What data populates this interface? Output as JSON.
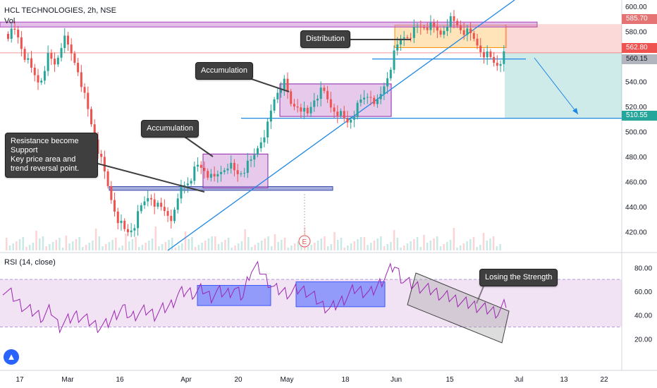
{
  "header": {
    "title": "HCL TECHNOLOGIES, 2h, NSE",
    "volume_label": "Vol"
  },
  "rsi_panel": {
    "title": "RSI (14, close)",
    "upper_band": 70,
    "lower_band": 30,
    "ticks": [
      "80.00",
      "60.00",
      "40.00",
      "20.00"
    ]
  },
  "price_axis": {
    "ticks": [
      "600.00",
      "580.00",
      "560.00",
      "540.00",
      "520.00",
      "500.00",
      "480.00",
      "460.00",
      "440.00",
      "420.00"
    ]
  },
  "price_tags": [
    {
      "value": "585.70",
      "color": "#e57373"
    },
    {
      "value": "562.80",
      "color": "#ef5350"
    },
    {
      "value": "560.15",
      "color": "#b2b5be"
    },
    {
      "value": "510.55",
      "color": "#26a69a"
    }
  ],
  "time_axis": {
    "labels": [
      "17",
      "Mar",
      "16",
      "Apr",
      "20",
      "May",
      "18",
      "Jun",
      "15",
      "Jul",
      "13",
      "22"
    ]
  },
  "annotations": {
    "resistance_support": "Resistance become Support\nKey price area and\ntrend reversal point.",
    "accumulation_1": "Accumulation",
    "accumulation_2": "Accumulation",
    "distribution": "Distribution",
    "losing_strength": "Losing the Strength",
    "earnings_marker": "E"
  },
  "colors": {
    "up": "#26a69a",
    "down": "#ef5350",
    "trendline": "#1e88e5",
    "zone_purple": "#b39ddb",
    "rsi_line": "#9c27b0",
    "rsi_band": "#e1bee7"
  },
  "chart_data": {
    "type": "candlestick",
    "symbol": "HCL TECHNOLOGIES",
    "timeframe": "2h",
    "exchange": "NSE",
    "ylim": [
      405,
      605
    ],
    "zones": [
      {
        "name": "support_zone",
        "low": 453,
        "high": 456
      },
      {
        "name": "accumulation_1",
        "low": 455,
        "high": 482
      },
      {
        "name": "accumulation_2",
        "low": 512,
        "high": 538
      },
      {
        "name": "distribution",
        "low": 567,
        "high": 585
      }
    ],
    "levels": {
      "resistance": 585.7,
      "entry": 562.8,
      "last": 560.15,
      "target": 510.55
    },
    "close_path": [
      578,
      580,
      562,
      548,
      538,
      560,
      553,
      575,
      562,
      548,
      520,
      495,
      472,
      448,
      430,
      418,
      425,
      440,
      450,
      440,
      436,
      430,
      455,
      462,
      472,
      470,
      460,
      468,
      475,
      465,
      470,
      476,
      492,
      505,
      530,
      540,
      520,
      522,
      512,
      528,
      532,
      520,
      516,
      506,
      515,
      525,
      530,
      522,
      540,
      560,
      575,
      578,
      582,
      585,
      582,
      578,
      590,
      585,
      580,
      575,
      566,
      560,
      553,
      560
    ],
    "rsi_path": [
      62,
      58,
      50,
      45,
      42,
      38,
      45,
      30,
      35,
      40,
      38,
      34,
      30,
      32,
      40,
      46,
      38,
      42,
      44,
      40,
      45,
      48,
      58,
      60,
      58,
      62,
      55,
      60,
      58,
      62,
      55,
      78,
      80,
      70,
      62,
      60,
      58,
      62,
      60,
      55,
      48,
      45,
      50,
      55,
      62,
      60,
      58,
      65,
      74,
      82,
      70,
      66,
      64,
      62,
      60,
      56,
      55,
      52,
      50,
      48,
      46,
      44,
      42,
      50
    ]
  }
}
